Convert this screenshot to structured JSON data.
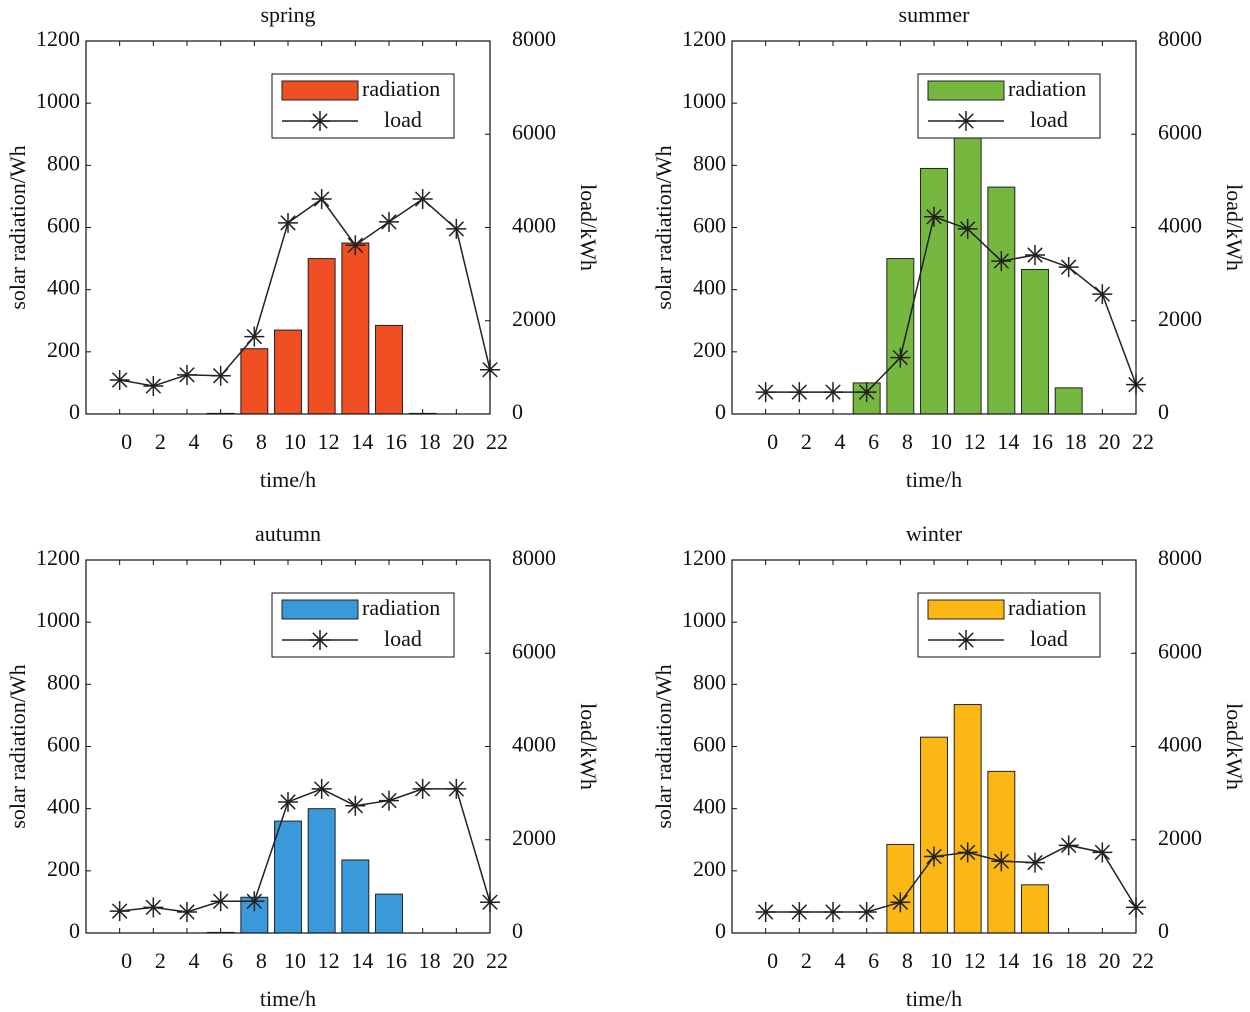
{
  "chart_data": [
    {
      "type": "bar_line",
      "title": "spring",
      "xlabel": "time/h",
      "ylabel": "solar radiation/Wh",
      "y2label": "load/kWh",
      "categories": [
        "0",
        "2",
        "4",
        "6",
        "8",
        "10",
        "12",
        "14",
        "16",
        "18",
        "20",
        "22"
      ],
      "series": [
        {
          "name": "radiation",
          "color": "#f04e23",
          "values": [
            0,
            0,
            0,
            2,
            210,
            270,
            500,
            550,
            285,
            2,
            0,
            0
          ]
        },
        {
          "name": "load",
          "color": "#222222",
          "axis": "y2",
          "values": [
            730,
            600,
            840,
            820,
            1660,
            4100,
            4610,
            3620,
            4120,
            4610,
            3970,
            950
          ]
        }
      ],
      "ylim": [
        0,
        1200
      ],
      "yticks": [
        0,
        200,
        400,
        600,
        800,
        1000,
        1200
      ],
      "y2lim": [
        0,
        8000
      ],
      "y2ticks": [
        0,
        2000,
        4000,
        6000,
        8000
      ],
      "legend": "upper right"
    },
    {
      "type": "bar_line",
      "title": "summer",
      "xlabel": "time/h",
      "ylabel": "solar radiation/Wh",
      "y2label": "load/kWh",
      "categories": [
        "0",
        "2",
        "4",
        "6",
        "8",
        "10",
        "12",
        "14",
        "16",
        "18",
        "20",
        "22"
      ],
      "series": [
        {
          "name": "radiation",
          "color": "#76b83f",
          "values": [
            0,
            0,
            0,
            100,
            500,
            790,
            895,
            730,
            465,
            84,
            0,
            0
          ]
        },
        {
          "name": "load",
          "color": "#222222",
          "axis": "y2",
          "values": [
            470,
            470,
            470,
            470,
            1210,
            4230,
            3970,
            3280,
            3410,
            3150,
            2570,
            630
          ]
        }
      ],
      "ylim": [
        0,
        1200
      ],
      "yticks": [
        0,
        200,
        400,
        600,
        800,
        1000,
        1200
      ],
      "y2lim": [
        0,
        8000
      ],
      "y2ticks": [
        0,
        2000,
        4000,
        6000,
        8000
      ],
      "legend": "upper right"
    },
    {
      "type": "bar_line",
      "title": "autumn",
      "xlabel": "time/h",
      "ylabel": "solar radiation/Wh",
      "y2label": "load/kWh",
      "categories": [
        "0",
        "2",
        "4",
        "6",
        "8",
        "10",
        "12",
        "14",
        "16",
        "18",
        "20",
        "22"
      ],
      "series": [
        {
          "name": "radiation",
          "color": "#3a9ad9",
          "values": [
            0,
            0,
            0,
            2,
            115,
            360,
            400,
            235,
            125,
            0,
            0,
            0
          ]
        },
        {
          "name": "load",
          "color": "#222222",
          "axis": "y2",
          "values": [
            470,
            550,
            450,
            680,
            680,
            2810,
            3090,
            2730,
            2840,
            3090,
            3090,
            660
          ]
        }
      ],
      "ylim": [
        0,
        1200
      ],
      "yticks": [
        0,
        200,
        400,
        600,
        800,
        1000,
        1200
      ],
      "y2lim": [
        0,
        8000
      ],
      "y2ticks": [
        0,
        2000,
        4000,
        6000,
        8000
      ],
      "legend": "upper right"
    },
    {
      "type": "bar_line",
      "title": "winter",
      "xlabel": "time/h",
      "ylabel": "solar radiation/Wh",
      "y2label": "load/kWh",
      "categories": [
        "0",
        "2",
        "4",
        "6",
        "8",
        "10",
        "12",
        "14",
        "16",
        "18",
        "20",
        "22"
      ],
      "series": [
        {
          "name": "radiation",
          "color": "#fbb814",
          "values": [
            0,
            0,
            0,
            0,
            285,
            630,
            735,
            520,
            155,
            0,
            0,
            0
          ]
        },
        {
          "name": "load",
          "color": "#222222",
          "axis": "y2",
          "values": [
            450,
            450,
            450,
            450,
            660,
            1640,
            1730,
            1540,
            1510,
            1880,
            1730,
            550
          ]
        }
      ],
      "ylim": [
        0,
        1200
      ],
      "yticks": [
        0,
        200,
        400,
        600,
        800,
        1000,
        1200
      ],
      "y2lim": [
        0,
        8000
      ],
      "y2ticks": [
        0,
        2000,
        4000,
        6000,
        8000
      ],
      "legend": "upper right"
    }
  ]
}
